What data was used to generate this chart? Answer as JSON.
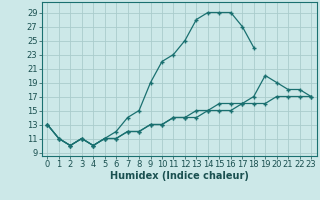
{
  "title": "",
  "xlabel": "Humidex (Indice chaleur)",
  "background_color": "#cce8e8",
  "grid_color": "#aacccc",
  "line_color": "#1a7070",
  "x_ticks": [
    0,
    1,
    2,
    3,
    4,
    5,
    6,
    7,
    8,
    9,
    10,
    11,
    12,
    13,
    14,
    15,
    16,
    17,
    18,
    19,
    20,
    21,
    22,
    23
  ],
  "y_ticks": [
    9,
    11,
    13,
    15,
    17,
    19,
    21,
    23,
    25,
    27,
    29
  ],
  "xlim": [
    -0.5,
    23.5
  ],
  "ylim": [
    8.5,
    30.5
  ],
  "line1_x": [
    0,
    1,
    2,
    3,
    4,
    5,
    6,
    7,
    8,
    9,
    10,
    11,
    12,
    13,
    14,
    15,
    16,
    17,
    18
  ],
  "line1_y": [
    13,
    11,
    10,
    11,
    10,
    11,
    12,
    14,
    15,
    19,
    22,
    23,
    25,
    28,
    29,
    29,
    29,
    27,
    24
  ],
  "line2_x": [
    0,
    1,
    2,
    3,
    4,
    5,
    6,
    7,
    8,
    9,
    10,
    11,
    12,
    13,
    14,
    15,
    16,
    17,
    18,
    19,
    20,
    21,
    22,
    23
  ],
  "line2_y": [
    13,
    11,
    10,
    11,
    10,
    11,
    11,
    12,
    12,
    13,
    13,
    14,
    14,
    14,
    15,
    15,
    15,
    16,
    16,
    16,
    17,
    17,
    17,
    17
  ],
  "line3_x": [
    0,
    1,
    2,
    3,
    4,
    5,
    6,
    7,
    8,
    9,
    10,
    11,
    12,
    13,
    14,
    15,
    16,
    17,
    18,
    19,
    20,
    21,
    22,
    23
  ],
  "line3_y": [
    13,
    11,
    10,
    11,
    10,
    11,
    11,
    12,
    12,
    13,
    13,
    14,
    14,
    15,
    15,
    16,
    16,
    16,
    17,
    20,
    19,
    18,
    18,
    17
  ]
}
